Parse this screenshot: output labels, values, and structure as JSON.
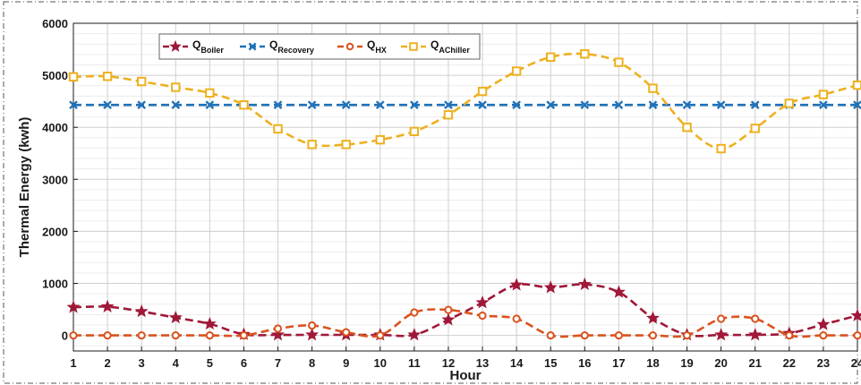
{
  "chart_data": {
    "type": "line",
    "xlabel": "Hour",
    "ylabel": "Thermal Energy (kwh)",
    "xlim": [
      1,
      24
    ],
    "ylim": [
      -300,
      6000
    ],
    "x_ticks": [
      1,
      2,
      3,
      4,
      5,
      6,
      7,
      8,
      9,
      10,
      11,
      12,
      13,
      14,
      15,
      16,
      17,
      18,
      19,
      20,
      21,
      22,
      23,
      24
    ],
    "y_ticks": [
      0,
      1000,
      2000,
      3000,
      4000,
      5000,
      6000
    ],
    "grid": true,
    "legend_placement": "top-left",
    "x": [
      1,
      2,
      3,
      4,
      5,
      6,
      7,
      8,
      9,
      10,
      11,
      12,
      13,
      14,
      15,
      16,
      17,
      18,
      19,
      20,
      21,
      22,
      23,
      24
    ],
    "series": [
      {
        "name": "Q",
        "subscript": "Boiler",
        "marker": "star",
        "color": "#a01838",
        "values": [
          540,
          550,
          460,
          340,
          220,
          20,
          10,
          10,
          10,
          10,
          10,
          300,
          630,
          970,
          920,
          980,
          830,
          330,
          10,
          10,
          10,
          40,
          210,
          380
        ]
      },
      {
        "name": "Q",
        "subscript": "Recovery",
        "marker": "x",
        "color": "#1f72b8",
        "values": [
          4430,
          4430,
          4430,
          4430,
          4430,
          4430,
          4430,
          4430,
          4430,
          4430,
          4430,
          4430,
          4430,
          4430,
          4430,
          4430,
          4430,
          4430,
          4430,
          4430,
          4430,
          4430,
          4430,
          4430
        ]
      },
      {
        "name": "Q",
        "subscript": "HX",
        "marker": "circle",
        "color": "#d9531e",
        "values": [
          0,
          0,
          0,
          0,
          0,
          0,
          130,
          190,
          60,
          0,
          440,
          490,
          380,
          320,
          0,
          0,
          0,
          0,
          0,
          320,
          320,
          0,
          0,
          0
        ]
      },
      {
        "name": "Q",
        "subscript": "AChiller",
        "marker": "square",
        "color": "#edb120",
        "values": [
          4970,
          4980,
          4880,
          4770,
          4660,
          4430,
          3970,
          3670,
          3670,
          3760,
          3920,
          4240,
          4690,
          5080,
          5350,
          5410,
          5250,
          4750,
          4000,
          3590,
          3980,
          4460,
          4630,
          4810
        ]
      }
    ]
  }
}
